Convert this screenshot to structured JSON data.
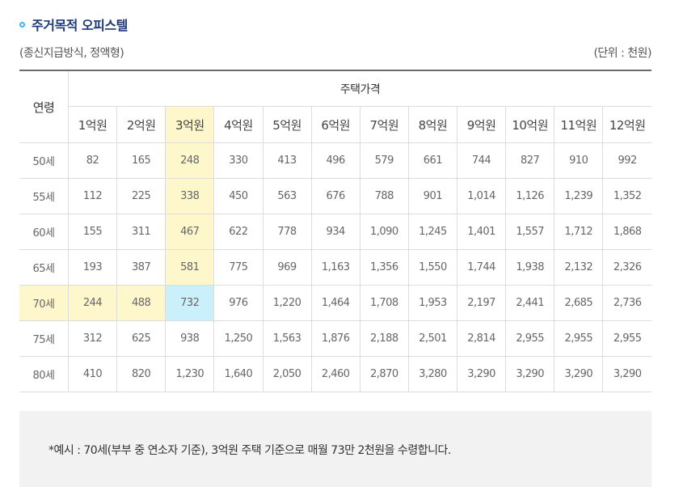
{
  "section": {
    "title": "주거목적 오피스텔",
    "subtitle": "(종신지급방식, 정액형)",
    "unit": "(단위 : 천원)"
  },
  "table": {
    "age_header": "연령",
    "price_header": "주택가격",
    "columns": [
      "1억원",
      "2억원",
      "3억원",
      "4억원",
      "5억원",
      "6억원",
      "7억원",
      "8억원",
      "9억원",
      "10억원",
      "11억원",
      "12억원"
    ],
    "rows": [
      {
        "age": "50세",
        "values": [
          "82",
          "165",
          "248",
          "330",
          "413",
          "496",
          "579",
          "661",
          "744",
          "827",
          "910",
          "992"
        ]
      },
      {
        "age": "55세",
        "values": [
          "112",
          "225",
          "338",
          "450",
          "563",
          "676",
          "788",
          "901",
          "1,014",
          "1,126",
          "1,239",
          "1,352"
        ]
      },
      {
        "age": "60세",
        "values": [
          "155",
          "311",
          "467",
          "622",
          "778",
          "934",
          "1,090",
          "1,245",
          "1,401",
          "1,557",
          "1,712",
          "1,868"
        ]
      },
      {
        "age": "65세",
        "values": [
          "193",
          "387",
          "581",
          "775",
          "969",
          "1,163",
          "1,356",
          "1,550",
          "1,744",
          "1,938",
          "2,132",
          "2,326"
        ]
      },
      {
        "age": "70세",
        "values": [
          "244",
          "488",
          "732",
          "976",
          "1,220",
          "1,464",
          "1,708",
          "1,953",
          "2,197",
          "2,441",
          "2,685",
          "2,736"
        ]
      },
      {
        "age": "75세",
        "values": [
          "312",
          "625",
          "938",
          "1,250",
          "1,563",
          "1,876",
          "2,188",
          "2,501",
          "2,814",
          "2,955",
          "2,955",
          "2,955"
        ]
      },
      {
        "age": "80세",
        "values": [
          "410",
          "820",
          "1,230",
          "1,640",
          "2,050",
          "2,460",
          "2,870",
          "3,280",
          "3,290",
          "3,290",
          "3,290",
          "3,290"
        ]
      }
    ],
    "highlight": {
      "column_index": 2,
      "row_index": 4
    },
    "colors": {
      "highlight_yellow": "#fff7cc",
      "highlight_cyan": "#c9f0fb"
    }
  },
  "notice": {
    "text": "*예시 : 70세(부부 중 연소자 기준), 3억원 주택 기준으로 매월 73만 2천원을 수령합니다."
  }
}
